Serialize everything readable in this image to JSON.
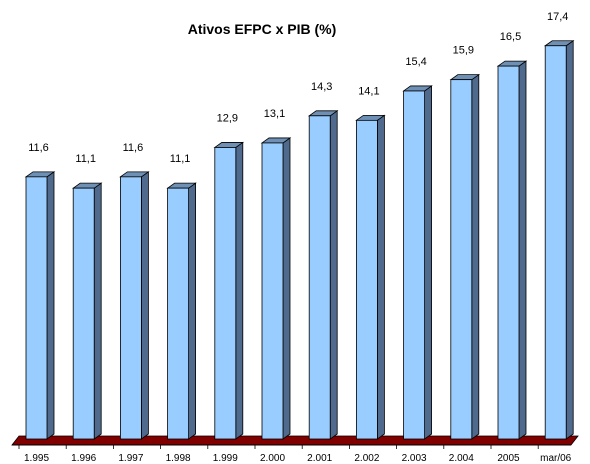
{
  "chart_data": {
    "type": "bar",
    "title": "Ativos EFPC x PIB (%)",
    "categories": [
      "1.995",
      "1.996",
      "1.997",
      "1.998",
      "1.999",
      "2.000",
      "2.001",
      "2.002",
      "2.003",
      "2.004",
      "2005",
      "mar/06"
    ],
    "values": [
      11.6,
      11.1,
      11.6,
      11.1,
      12.9,
      13.1,
      14.3,
      14.1,
      15.4,
      15.9,
      16.5,
      17.4
    ],
    "value_labels": [
      "11,6",
      "11,1",
      "11,6",
      "11,1",
      "12,9",
      "13,1",
      "14,3",
      "14,1",
      "15,4",
      "15,9",
      "16,5",
      "17,4"
    ],
    "xlabel": "",
    "ylabel": "",
    "ylim": [
      0,
      18
    ],
    "grid": false,
    "legend": "none",
    "style": "3d-column",
    "colors": {
      "bar_front": "#99ccff",
      "bar_side": "#4f6a8c",
      "bar_top": "#6f90b5",
      "bar_outline": "#000000",
      "floor": "#800000"
    }
  }
}
